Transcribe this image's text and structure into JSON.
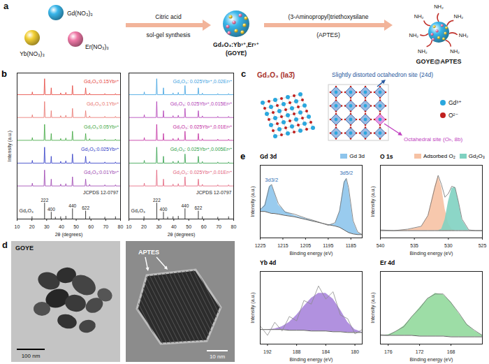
{
  "chart_data": [
    {
      "panel": "b",
      "type": "line",
      "x_label": "2θ (degrees)",
      "y_label": "Intensity (a.u.)",
      "xlim": [
        10,
        80
      ],
      "xticks": [
        10,
        20,
        30,
        40,
        50,
        60,
        70,
        80
      ],
      "ylim": [
        0,
        6.4
      ],
      "tick_labels": "x",
      "x": [
        10,
        20,
        20.3,
        20.6,
        28.2,
        28.6,
        29,
        32.8,
        33.1,
        33.4,
        39.2,
        39.5,
        39.8,
        42.7,
        43,
        43.3,
        47.1,
        47.5,
        47.9,
        56,
        56.4,
        56.8,
        58.8,
        59.1,
        59.4,
        69.1,
        69.4,
        69.7,
        76.3,
        76.6,
        76.9,
        80
      ],
      "series": [
        {
          "name": "Gd₂O₃:0.15Yb³⁺",
          "color": "#e5413a",
          "values": [
            5.45,
            5.45,
            5.57,
            5.45,
            5.45,
            6.15,
            5.45,
            5.45,
            5.75,
            5.45,
            5.45,
            5.53,
            5.45,
            5.45,
            5.55,
            5.45,
            5.45,
            5.85,
            5.45,
            5.45,
            5.75,
            5.45,
            5.45,
            5.52,
            5.45,
            5.45,
            5.5,
            5.45,
            5.45,
            5.5,
            5.45,
            5.45
          ]
        },
        {
          "name": "Gd₂O₃:0.1Yb³⁺",
          "color": "#e8716b",
          "values": [
            4.45,
            4.45,
            4.57,
            4.45,
            4.45,
            5.15,
            4.45,
            4.45,
            4.75,
            4.45,
            4.45,
            4.53,
            4.45,
            4.45,
            4.55,
            4.45,
            4.45,
            4.85,
            4.45,
            4.45,
            4.75,
            4.45,
            4.45,
            4.52,
            4.45,
            4.45,
            4.5,
            4.45,
            4.45,
            4.5,
            4.45,
            4.45
          ]
        },
        {
          "name": "Gd₂O₃:0.05Yb³⁺",
          "color": "#3aa53a",
          "values": [
            3.45,
            3.45,
            3.57,
            3.45,
            3.45,
            4.15,
            3.45,
            3.45,
            3.75,
            3.45,
            3.45,
            3.53,
            3.45,
            3.45,
            3.55,
            3.45,
            3.45,
            3.85,
            3.45,
            3.45,
            3.75,
            3.45,
            3.45,
            3.52,
            3.45,
            3.45,
            3.5,
            3.45,
            3.45,
            3.5,
            3.45,
            3.45
          ]
        },
        {
          "name": "Gd₂O₃:0.025Yb³⁺",
          "color": "#2b36c4",
          "values": [
            2.45,
            2.45,
            2.57,
            2.45,
            2.45,
            3.15,
            2.45,
            2.45,
            2.75,
            2.45,
            2.45,
            2.53,
            2.45,
            2.45,
            2.55,
            2.45,
            2.45,
            2.85,
            2.45,
            2.45,
            2.75,
            2.45,
            2.45,
            2.52,
            2.45,
            2.45,
            2.5,
            2.45,
            2.45,
            2.5,
            2.45,
            2.45
          ]
        },
        {
          "name": "Gd₂O₃:0.01Yb³⁺",
          "color": "#9a3fb0",
          "values": [
            1.45,
            1.45,
            1.57,
            1.45,
            1.45,
            2.15,
            1.45,
            1.45,
            1.75,
            1.45,
            1.45,
            1.53,
            1.45,
            1.45,
            1.55,
            1.45,
            1.45,
            1.85,
            1.45,
            1.45,
            1.75,
            1.45,
            1.45,
            1.52,
            1.45,
            1.45,
            1.5,
            1.45,
            1.45,
            1.5,
            1.45,
            1.45
          ]
        }
      ],
      "reference": {
        "name": "Gd₂O₃",
        "source": "JCPDS 12-0797",
        "x": [
          20.1,
          28.6,
          33.1,
          35.9,
          39.5,
          43,
          47.5,
          56.4,
          59.1,
          69.4,
          76.6
        ],
        "values": [
          0.1,
          0.7,
          0.3,
          0.08,
          0.1,
          0.12,
          0.45,
          0.35,
          0.1,
          0.08,
          0.1
        ],
        "labels": [
          null,
          "222",
          "400",
          null,
          null,
          null,
          "440",
          "622",
          null,
          null,
          null
        ]
      }
    },
    {
      "type": "line",
      "x_label": "2θ (degrees)",
      "xlim": [
        10,
        80
      ],
      "xticks": [
        10,
        20,
        30,
        40,
        50,
        60,
        70,
        80
      ],
      "ylim": [
        0,
        6.4
      ],
      "tick_labels": "x",
      "x": [
        10,
        20,
        20.3,
        20.6,
        28.2,
        28.6,
        29,
        32.8,
        33.1,
        33.4,
        39.2,
        39.5,
        39.8,
        42.7,
        43,
        43.3,
        47.1,
        47.5,
        47.9,
        56,
        56.4,
        56.8,
        58.8,
        59.1,
        59.4,
        69.1,
        69.4,
        69.7,
        76.3,
        76.6,
        76.9,
        80
      ],
      "series": [
        {
          "name": "Gd₂O₃: 0.025Yb³⁺,0.02Er³⁺",
          "color": "#3aa0e0",
          "values": [
            5.45,
            5.45,
            5.57,
            5.45,
            5.45,
            6.15,
            5.45,
            5.45,
            5.75,
            5.45,
            5.45,
            5.53,
            5.45,
            5.45,
            5.55,
            5.45,
            5.45,
            5.85,
            5.45,
            5.45,
            5.75,
            5.45,
            5.45,
            5.52,
            5.45,
            5.45,
            5.5,
            5.45,
            5.45,
            5.5,
            5.45,
            5.45
          ]
        },
        {
          "name": "Gd₂O₃: 0.025Yb³⁺,0.015Er³⁺",
          "color": "#b03ab5",
          "values": [
            4.45,
            4.45,
            4.57,
            4.45,
            4.45,
            5.15,
            4.45,
            4.45,
            4.75,
            4.45,
            4.45,
            4.53,
            4.45,
            4.45,
            4.55,
            4.45,
            4.45,
            4.85,
            4.45,
            4.45,
            4.75,
            4.45,
            4.45,
            4.52,
            4.45,
            4.45,
            4.5,
            4.45,
            4.45,
            4.5,
            4.45,
            4.45
          ]
        },
        {
          "name": "Gd₂O₃: 0.025Yb³⁺,0.01Er³⁺",
          "color": "#c0279e",
          "values": [
            3.45,
            3.45,
            3.57,
            3.45,
            3.45,
            4.15,
            3.45,
            3.45,
            3.75,
            3.45,
            3.45,
            3.53,
            3.45,
            3.45,
            3.55,
            3.45,
            3.45,
            3.85,
            3.45,
            3.45,
            3.75,
            3.45,
            3.45,
            3.52,
            3.45,
            3.45,
            3.5,
            3.45,
            3.45,
            3.5,
            3.45,
            3.45
          ]
        },
        {
          "name": "Gd₂O₃: 0.025Yb³⁺,0.005Er³⁺",
          "color": "#2f9e47",
          "values": [
            2.45,
            2.45,
            2.57,
            2.45,
            2.45,
            3.15,
            2.45,
            2.45,
            2.75,
            2.45,
            2.45,
            2.53,
            2.45,
            2.45,
            2.55,
            2.45,
            2.45,
            2.85,
            2.45,
            2.45,
            2.75,
            2.45,
            2.45,
            2.52,
            2.45,
            2.45,
            2.5,
            2.45,
            2.45,
            2.5,
            2.45,
            2.45
          ]
        },
        {
          "name": "Gd₂O₃: 0.025Yb³⁺,0.01Er³⁺",
          "color": "#e2607a",
          "values": [
            1.45,
            1.45,
            1.57,
            1.45,
            1.45,
            2.15,
            1.45,
            1.45,
            1.75,
            1.45,
            1.45,
            1.53,
            1.45,
            1.45,
            1.55,
            1.45,
            1.45,
            1.85,
            1.45,
            1.45,
            1.75,
            1.45,
            1.45,
            1.52,
            1.45,
            1.45,
            1.5,
            1.45,
            1.45,
            1.5,
            1.45,
            1.45
          ]
        }
      ],
      "reference": {
        "name": "Gd₂O₃",
        "source": "JCPDS 12-0797",
        "x": [
          20.1,
          28.6,
          33.1,
          35.9,
          39.5,
          43,
          47.5,
          56.4,
          59.1,
          69.4,
          76.6
        ],
        "values": [
          0.1,
          0.7,
          0.3,
          0.08,
          0.1,
          0.12,
          0.45,
          0.35,
          0.1,
          0.08,
          0.1
        ],
        "labels": [
          null,
          "222",
          "400",
          null,
          null,
          null,
          "440",
          "622",
          null,
          null,
          null
        ]
      }
    },
    {
      "panel": "e",
      "type": "line",
      "title": "Gd 3d",
      "x_label": "Binding energy (eV)",
      "y_label": "Intensity (a.u.)",
      "xlim": [
        1225,
        1180
      ],
      "xticks": [
        1225,
        1215,
        1205,
        1195,
        1185
      ],
      "ylim": [
        0,
        1.1
      ],
      "tick_labels": "x",
      "legend": "top",
      "x": [
        1225,
        1223,
        1221,
        1220,
        1219,
        1217,
        1214,
        1210,
        1205,
        1200,
        1195,
        1192,
        1190,
        1188,
        1187,
        1186,
        1184,
        1182,
        1180
      ],
      "background": [
        0.4,
        0.4,
        0.38,
        0.37,
        0.37,
        0.36,
        0.34,
        0.32,
        0.28,
        0.24,
        0.2,
        0.18,
        0.16,
        0.12,
        0.1,
        0.08,
        0.06,
        0.05,
        0.05
      ],
      "series": [
        {
          "type": "area",
          "name": "Gd 3d",
          "color": "#8ec5ec",
          "values": [
            0.42,
            0.5,
            0.78,
            0.8,
            0.72,
            0.5,
            0.4,
            0.34,
            0.29,
            0.24,
            0.2,
            0.21,
            0.4,
            0.85,
            0.9,
            0.75,
            0.25,
            0.08,
            0.05
          ]
        },
        {
          "type": "line",
          "color": "#6e6e6e",
          "values": [
            0.43,
            0.49,
            0.77,
            0.81,
            0.71,
            0.52,
            0.39,
            0.36,
            0.3,
            0.25,
            0.19,
            0.23,
            0.41,
            0.84,
            0.9,
            0.76,
            0.26,
            0.09,
            0.05
          ]
        }
      ],
      "annotations": [
        {
          "text": "3d3/2",
          "x": 1220,
          "y": 0.8,
          "color": "#2f6db3"
        },
        {
          "text": "3d5/2",
          "x": 1187,
          "y": 0.9,
          "color": "#2f6db3"
        }
      ]
    },
    {
      "type": "line",
      "title": "O 1s",
      "x_label": "Binding energy (eV)",
      "y_label": "Intensity (a.u.)",
      "xlim": [
        540,
        525
      ],
      "xticks": [
        540,
        535,
        530,
        525
      ],
      "ylim": [
        0,
        1
      ],
      "tick_labels": "x",
      "legend": "top",
      "x": [
        540,
        538,
        536,
        534,
        533,
        532,
        531.5,
        531,
        530.5,
        530,
        529.5,
        529,
        528.5,
        528,
        527,
        526,
        525
      ],
      "background": [
        0.1,
        0.1,
        0.1,
        0.1,
        0.1,
        0.1,
        0.1,
        0.1,
        0.1,
        0.1,
        0.1,
        0.1,
        0.1,
        0.1,
        0.1,
        0.1,
        0.1
      ],
      "series": [
        {
          "type": "area",
          "name": "Adsorbed O₂",
          "color": "#f6c2a4",
          "values": [
            0.1,
            0.1,
            0.11,
            0.15,
            0.3,
            0.7,
            0.85,
            0.7,
            0.4,
            0.2,
            0.12,
            0.1,
            0.1,
            0.1,
            0.1,
            0.1,
            0.1
          ]
        },
        {
          "type": "area",
          "name": "Gd₂O₃",
          "color": "#7fd1c1",
          "values": [
            0.1,
            0.1,
            0.1,
            0.1,
            0.1,
            0.1,
            0.1,
            0.12,
            0.25,
            0.5,
            0.68,
            0.7,
            0.5,
            0.25,
            0.1,
            0.1,
            0.1
          ]
        },
        {
          "type": "line",
          "color": "#6e6e6e",
          "values": [
            0.11,
            0.1,
            0.12,
            0.16,
            0.31,
            0.69,
            0.86,
            0.73,
            0.56,
            0.61,
            0.71,
            0.69,
            0.49,
            0.26,
            0.11,
            0.1,
            0.1
          ]
        }
      ]
    },
    {
      "type": "line",
      "title": "Yb 4d",
      "x_label": "Binding energy (eV)",
      "y_label": "Intensity (a.u.)",
      "xlim": [
        193,
        179
      ],
      "xticks": [
        192,
        188,
        184,
        180
      ],
      "ylim": [
        0,
        1
      ],
      "tick_labels": "x",
      "x": [
        193,
        192,
        191,
        190,
        189,
        188,
        187,
        186,
        185,
        184,
        183,
        182,
        181,
        180,
        179
      ],
      "background": [
        0.2,
        0.2,
        0.2,
        0.2,
        0.19,
        0.19,
        0.19,
        0.18,
        0.18,
        0.18,
        0.17,
        0.17,
        0.16,
        0.16,
        0.16
      ],
      "series": [
        {
          "type": "area",
          "color": "#a985dc",
          "values": [
            0.2,
            0.2,
            0.21,
            0.24,
            0.3,
            0.4,
            0.52,
            0.63,
            0.7,
            0.7,
            0.62,
            0.47,
            0.3,
            0.2,
            0.16
          ]
        },
        {
          "type": "line",
          "color": "#8a8a8a",
          "values": [
            0.25,
            0.12,
            0.3,
            0.18,
            0.38,
            0.32,
            0.6,
            0.55,
            0.8,
            0.62,
            0.72,
            0.4,
            0.35,
            0.14,
            0.2
          ]
        }
      ]
    },
    {
      "type": "line",
      "title": "Er 4d",
      "x_label": "Binding energy (eV)",
      "y_label": "Intensity (a.u.)",
      "xlim": [
        177,
        164
      ],
      "xticks": [
        176,
        172,
        168
      ],
      "ylim": [
        0,
        1
      ],
      "tick_labels": "x",
      "x": [
        177,
        176,
        175,
        174,
        173,
        172,
        171,
        170,
        169,
        168,
        167,
        166,
        165,
        164
      ],
      "background": [
        0.12,
        0.12,
        0.12,
        0.12,
        0.12,
        0.11,
        0.11,
        0.11,
        0.11,
        0.1,
        0.1,
        0.1,
        0.1,
        0.1
      ],
      "series": [
        {
          "type": "area",
          "color": "#92d99c",
          "values": [
            0.12,
            0.13,
            0.17,
            0.25,
            0.37,
            0.5,
            0.62,
            0.7,
            0.68,
            0.58,
            0.42,
            0.28,
            0.18,
            0.12
          ]
        },
        {
          "type": "line",
          "color": "#6e6e6e",
          "values": [
            0.13,
            0.12,
            0.18,
            0.24,
            0.38,
            0.49,
            0.63,
            0.69,
            0.69,
            0.57,
            0.43,
            0.27,
            0.19,
            0.12
          ]
        }
      ]
    }
  ],
  "schematic": {
    "panel": "a",
    "precursors": [
      {
        "label": "Gd(NO₃)₃",
        "color": "#39b6ea"
      },
      {
        "label": "Yb(NO₃)₃",
        "color": "#f2cf35"
      },
      {
        "label": "Er(NO₃)₃",
        "color": "#ef78a6"
      }
    ],
    "steps": [
      {
        "above": "Citric acid",
        "below": "sol-gel synthesis"
      },
      {
        "above": "(3-Aminopropyl)triethoxysilane",
        "below": "(APTES)"
      }
    ],
    "products": [
      {
        "label": "Gd₂O₃:Yb³⁺,Er³⁺",
        "sublabel": "(GOYE)"
      },
      {
        "label": "GOYE@APTES",
        "ligands": [
          "NH₂",
          "NH₂",
          "NH₂",
          "NH₂",
          "NH₂",
          "NH₂",
          "NH₂"
        ]
      }
    ]
  },
  "crystal_structure": {
    "panel": "c",
    "title": "Gd₂O₃ (Ia3̄)",
    "sites": [
      "Slightly distorted octahedron site (24d)",
      "Octahedral site (Oₕ, 8b)"
    ],
    "ions": [
      {
        "label": "Gd³⁺",
        "color": "#2aa7de"
      },
      {
        "label": "O²⁻",
        "color": "#c0201e"
      }
    ]
  },
  "tem": {
    "panel": "d",
    "images": [
      {
        "label": "GOYE",
        "scale_bar": "100 nm"
      },
      {
        "label": "APTES",
        "scale_bar": "10 nm"
      }
    ]
  }
}
